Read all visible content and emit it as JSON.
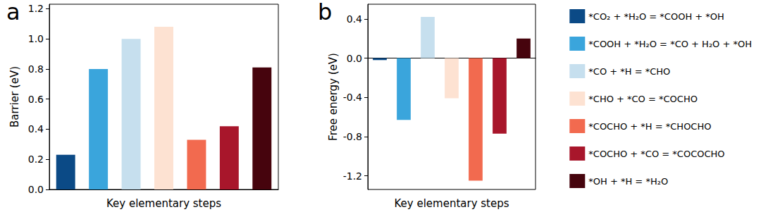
{
  "chart_data": [
    {
      "type": "bar",
      "title": "a",
      "x_label": "Key elementary steps",
      "y_label": "Barrier (eV)",
      "categories": [
        "*CO₂ + *H₂O = *COOH + *OH",
        "*COOH + *H₂O = *CO + H₂O + *OH",
        "*CO + *H = *CHO",
        "*CHO + *CO = *COCHO",
        "*COCHO + *H = *CHOCHO",
        "*COCHO + *CO = *COCOCHO",
        "*OH + *H = *H₂O"
      ],
      "values": [
        0.23,
        0.8,
        1.0,
        1.08,
        0.33,
        0.42,
        0.81
      ],
      "colors": [
        "#0b4a86",
        "#3aa5dc",
        "#c6dfee",
        "#fde2d2",
        "#f26a4f",
        "#a8162b",
        "#46040d"
      ],
      "ylim": [
        0,
        1.23
      ],
      "yticks": [
        {
          "value": 0,
          "label": "0.0"
        },
        0.2,
        0.4,
        0.6,
        0.8,
        {
          "value": 1,
          "label": "1.0"
        },
        1.2
      ],
      "grid": false,
      "tick_labels": "y"
    },
    {
      "type": "bar",
      "title": "b",
      "x_label": "Key elementary steps",
      "y_label": "Free energy (eV)",
      "categories": [
        "*CO₂ + *H₂O = *COOH + *OH",
        "*COOH + *H₂O = *CO + H₂O + *OH",
        "*CO + *H = *CHO",
        "*CHO + *CO = *COCHO",
        "*COCHO + *H = *CHOCHO",
        "*COCHO + *CO = *COCOCHO",
        "*OH + *H = *H₂O"
      ],
      "values": [
        -0.02,
        -0.63,
        0.42,
        -0.41,
        -1.25,
        -0.77,
        0.2
      ],
      "colors": [
        "#0b4a86",
        "#3aa5dc",
        "#c6dfee",
        "#fde2d2",
        "#f26a4f",
        "#a8162b",
        "#46040d"
      ],
      "ylim": [
        -1.34,
        0.55
      ],
      "yticks": [
        -1.2,
        -0.8,
        -0.4,
        {
          "value": 0,
          "label": "0.0"
        },
        0.4
      ],
      "grid": false,
      "tick_labels": "y",
      "legend": "right"
    }
  ]
}
